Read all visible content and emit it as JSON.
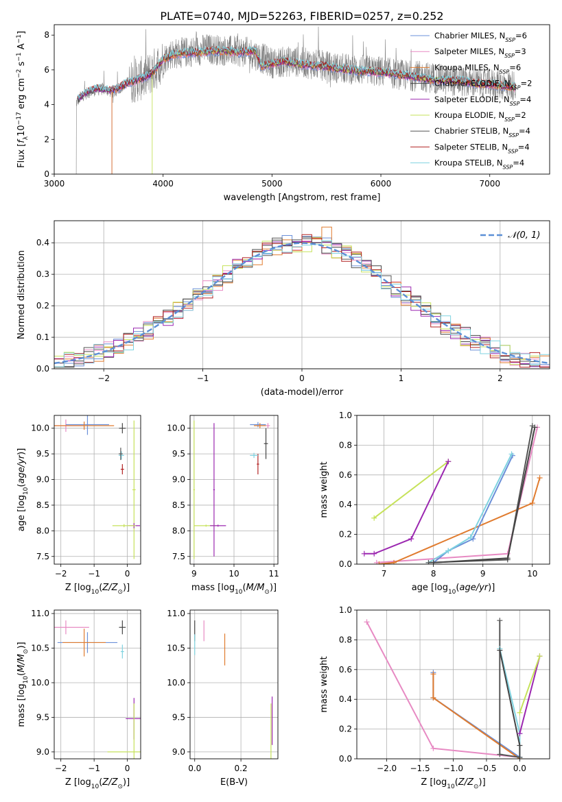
{
  "page_title": "PLATE=0740, MJD=52263, FIBERID=0257, z=0.252",
  "colors": {
    "chabrier_miles": "#6a8fd8",
    "salpeter_miles": "#e78ac3",
    "kroupa_miles": "#e07b2e",
    "chabrier_elodie": "#444444",
    "salpeter_elodie": "#9b27b0",
    "kroupa_elodie": "#c6e25a",
    "chabrier_stelib": "#555555",
    "salpeter_stelib": "#b22222",
    "kroupa_stelib": "#7fd3e0",
    "spectrum": "#808080",
    "normal": "#5b8fd6"
  },
  "legend": [
    {
      "name": "Chabrier MILES",
      "nssp": "6",
      "color_key": "chabrier_miles"
    },
    {
      "name": "Salpeter MILES",
      "nssp": "3",
      "color_key": "salpeter_miles"
    },
    {
      "name": "Kroupa MILES",
      "nssp": "6",
      "color_key": "kroupa_miles"
    },
    {
      "name": "Chabrier ELODIE",
      "nssp": "2",
      "color_key": "chabrier_elodie"
    },
    {
      "name": "Salpeter ELODIE",
      "nssp": "4",
      "color_key": "salpeter_elodie"
    },
    {
      "name": "Kroupa ELODIE",
      "nssp": "2",
      "color_key": "kroupa_elodie"
    },
    {
      "name": "Chabrier STELIB",
      "nssp": "4",
      "color_key": "chabrier_stelib"
    },
    {
      "name": "Salpeter STELIB",
      "nssp": "4",
      "color_key": "salpeter_stelib"
    },
    {
      "name": "Kroupa STELIB",
      "nssp": "4",
      "color_key": "kroupa_stelib"
    }
  ],
  "chart_data": [
    {
      "id": "spectrum",
      "type": "line",
      "xlabel": "wavelength [Angstrom, rest frame]",
      "ylabel": "Flux [f_λ 10^-17 erg cm^-2 s^-1 A^-1]",
      "xlim": [
        3000,
        7550
      ],
      "ylim": [
        0,
        8.6
      ],
      "xticks": [
        3000,
        4000,
        5000,
        6000,
        7000
      ],
      "yticks": [
        0,
        2,
        4,
        6,
        8
      ],
      "grid": false,
      "legend_position": "top-right",
      "observed_range": [
        3200,
        7240
      ],
      "observed_envelope": {
        "x": [
          3200,
          3250,
          3350,
          3450,
          3550,
          3650,
          3750,
          3850,
          3950,
          4050,
          4200,
          4400,
          4600,
          4800,
          5000,
          5200,
          5400,
          5600,
          5800,
          6000,
          6200,
          6400,
          6600,
          6800,
          7000,
          7240
        ],
        "y": [
          4.1,
          4.5,
          4.8,
          4.9,
          4.7,
          5.2,
          5.4,
          5.6,
          6.2,
          6.9,
          7.0,
          7.2,
          7.1,
          7.0,
          6.4,
          6.5,
          6.3,
          6.1,
          6.0,
          5.9,
          5.7,
          5.6,
          5.4,
          5.3,
          5.2,
          5.1
        ]
      },
      "model_mean": {
        "x": [
          3200,
          3300,
          3400,
          3500,
          3600,
          3700,
          3800,
          3900,
          4000,
          4100,
          4300,
          4500,
          4700,
          4850,
          4900,
          5100,
          5300,
          5500,
          5700,
          5900,
          6100,
          6300,
          6500,
          6700,
          6900,
          7100,
          7240
        ],
        "y": [
          4.2,
          4.7,
          4.9,
          4.8,
          5.0,
          5.3,
          5.5,
          5.8,
          6.6,
          6.9,
          7.0,
          7.1,
          7.0,
          7.1,
          6.2,
          6.5,
          6.3,
          6.2,
          6.0,
          5.9,
          5.8,
          5.6,
          5.4,
          5.4,
          5.2,
          5.1,
          5.0
        ]
      }
    },
    {
      "id": "residuals",
      "type": "line",
      "xlabel": "(data-model)/error",
      "ylabel": "Normed distribution",
      "xlim": [
        -2.5,
        2.5
      ],
      "ylim": [
        0,
        0.47
      ],
      "xticks": [
        -2,
        -1,
        0,
        1,
        2
      ],
      "yticks": [
        0.0,
        0.1,
        0.2,
        0.3,
        0.4
      ],
      "grid": true,
      "legend_position": "top-right",
      "legend_label": "𝒩(0, 1)",
      "bin_width": 0.1,
      "histogram_template": [
        0.02,
        0.03,
        0.05,
        0.08,
        0.13,
        0.17,
        0.24,
        0.3,
        0.35,
        0.38,
        0.4,
        0.39,
        0.34,
        0.29,
        0.22,
        0.15,
        0.1,
        0.07,
        0.05,
        0.03
      ],
      "notable_bins": [
        {
          "x": 0.25,
          "y": 0.45
        },
        {
          "x": -0.45,
          "y": 0.33
        }
      ]
    },
    {
      "id": "age_vs_z",
      "type": "scatter",
      "xlabel": "Z [log10(Z/Z☉)]",
      "ylabel": "age [log10(age/yr)]",
      "xlim": [
        -2.2,
        0.4
      ],
      "ylim": [
        7.35,
        10.25
      ],
      "xticks": [
        -2,
        -1,
        0
      ],
      "yticks": [
        7.5,
        8.0,
        8.5,
        9.0,
        9.5,
        10.0
      ],
      "grid": true,
      "points": [
        {
          "key": "salpeter_miles",
          "x": -1.85,
          "y": 10.05,
          "xerr": 0.55,
          "yerr": 0.12
        },
        {
          "key": "chabrier_miles",
          "x": -1.2,
          "y": 10.07,
          "xerr": 0.65,
          "yerr": 0.2
        },
        {
          "key": "kroupa_miles",
          "x": -1.3,
          "y": 10.05,
          "xerr": 0.9,
          "yerr": 0.08
        },
        {
          "key": "chabrier_elodie",
          "x": -0.15,
          "y": 10.0,
          "xerr": 0.1,
          "yerr": 0.1
        },
        {
          "key": "salpeter_stelib",
          "x": -0.15,
          "y": 9.2,
          "xerr": 0.05,
          "yerr": 0.1
        },
        {
          "key": "kroupa_stelib",
          "x": -0.18,
          "y": 9.47,
          "xerr": 0.08,
          "yerr": 0.08
        },
        {
          "key": "chabrier_stelib",
          "x": -0.2,
          "y": 9.5,
          "xerr": 0.06,
          "yerr": 0.12
        },
        {
          "key": "kroupa_elodie",
          "x": 0.2,
          "y": 8.8,
          "xerr": 0.05,
          "yerr": 1.35
        },
        {
          "key": "salpeter_elodie",
          "x": 0.2,
          "y": 8.1,
          "xerr": 0.18,
          "yerr": 0.05
        },
        {
          "key": "kroupa_elodie",
          "x": -0.1,
          "y": 8.1,
          "xerr": 0.35,
          "yerr": 0.03
        }
      ]
    },
    {
      "id": "age_vs_mass",
      "type": "scatter",
      "xlabel": "mass [log10(M/M☉)]",
      "ylabel": "",
      "xlim": [
        8.9,
        11.1
      ],
      "ylim": [
        7.35,
        10.25
      ],
      "xticks": [
        9,
        10,
        11
      ],
      "yticks": [
        7.5,
        8.0,
        8.5,
        9.0,
        9.5,
        10.0
      ],
      "grid": true,
      "points": [
        {
          "key": "kroupa_elodie",
          "x": 9.0,
          "y": 8.8,
          "xerr": 0.02,
          "yerr": 1.35
        },
        {
          "key": "salpeter_elodie",
          "x": 9.5,
          "y": 8.8,
          "xerr": 0.02,
          "yerr": 1.3
        },
        {
          "key": "kroupa_elodie",
          "x": 9.3,
          "y": 8.1,
          "xerr": 0.3,
          "yerr": 0.02
        },
        {
          "key": "salpeter_elodie",
          "x": 9.6,
          "y": 8.1,
          "xerr": 0.2,
          "yerr": 0.02
        },
        {
          "key": "chabrier_miles",
          "x": 10.6,
          "y": 10.07,
          "xerr": 0.2,
          "yerr": 0.05
        },
        {
          "key": "kroupa_miles",
          "x": 10.65,
          "y": 10.05,
          "xerr": 0.15,
          "yerr": 0.05
        },
        {
          "key": "salpeter_miles",
          "x": 10.85,
          "y": 10.05,
          "xerr": 0.05,
          "yerr": 0.05
        },
        {
          "key": "chabrier_elodie",
          "x": 10.8,
          "y": 9.7,
          "xerr": 0.05,
          "yerr": 0.3
        },
        {
          "key": "salpeter_stelib",
          "x": 10.6,
          "y": 9.3,
          "xerr": 0.03,
          "yerr": 0.2
        },
        {
          "key": "kroupa_stelib",
          "x": 10.5,
          "y": 9.47,
          "xerr": 0.1,
          "yerr": 0.05
        }
      ]
    },
    {
      "id": "weight_vs_age",
      "type": "line",
      "xlabel": "age [log10(age/yr)]",
      "ylabel": "mass weight",
      "xlim": [
        6.45,
        10.35
      ],
      "ylim": [
        0,
        1.0
      ],
      "xticks": [
        7,
        8,
        9,
        10
      ],
      "yticks": [
        0.0,
        0.2,
        0.4,
        0.6,
        0.8,
        1.0
      ],
      "grid": true,
      "series": [
        {
          "key": "kroupa_elodie",
          "x": [
            6.8,
            8.3
          ],
          "y": [
            0.31,
            0.69
          ]
        },
        {
          "key": "salpeter_elodie",
          "x": [
            6.6,
            6.8,
            7.55,
            8.3
          ],
          "y": [
            0.07,
            0.07,
            0.17,
            0.69
          ]
        },
        {
          "key": "salpeter_miles",
          "x": [
            6.85,
            9.5,
            10.1
          ],
          "y": [
            0.01,
            0.07,
            0.92
          ]
        },
        {
          "key": "kroupa_miles",
          "x": [
            6.9,
            7.2,
            10.0,
            10.15
          ],
          "y": [
            0.0,
            0.01,
            0.41,
            0.58
          ]
        },
        {
          "key": "chabrier_miles",
          "x": [
            8.0,
            8.3,
            8.8,
            9.6
          ],
          "y": [
            0.01,
            0.09,
            0.17,
            0.73
          ]
        },
        {
          "key": "kroupa_stelib",
          "x": [
            7.9,
            8.3,
            8.75,
            9.58
          ],
          "y": [
            0.01,
            0.09,
            0.18,
            0.74
          ]
        },
        {
          "key": "chabrier_stelib",
          "x": [
            7.9,
            9.5,
            10.0
          ],
          "y": [
            0.01,
            0.03,
            0.93
          ]
        },
        {
          "key": "chabrier_elodie",
          "x": [
            8.0,
            9.5,
            10.05
          ],
          "y": [
            0.01,
            0.04,
            0.92
          ]
        }
      ]
    },
    {
      "id": "mass_vs_z",
      "type": "scatter",
      "xlabel": "Z [log10(Z/Z☉)]",
      "ylabel": "mass [log10(M/M☉)]",
      "xlim": [
        -2.2,
        0.4
      ],
      "ylim": [
        8.9,
        11.05
      ],
      "xticks": [
        -2,
        -1,
        0
      ],
      "yticks": [
        9.0,
        9.5,
        10.0,
        10.5,
        11.0
      ],
      "grid": true,
      "points": [
        {
          "key": "salpeter_miles",
          "x": -1.85,
          "y": 10.8,
          "xerr": 0.7,
          "yerr": 0.1
        },
        {
          "key": "chabrier_miles",
          "x": -1.2,
          "y": 10.58,
          "xerr": 0.9,
          "yerr": 0.15
        },
        {
          "key": "kroupa_miles",
          "x": -1.3,
          "y": 10.58,
          "xerr": 0.65,
          "yerr": 0.2
        },
        {
          "key": "chabrier_elodie",
          "x": -0.15,
          "y": 10.8,
          "xerr": 0.1,
          "yerr": 0.1
        },
        {
          "key": "kroupa_stelib",
          "x": -0.15,
          "y": 10.45,
          "xerr": 0.05,
          "yerr": 0.1
        },
        {
          "key": "salpeter_elodie",
          "x": 0.2,
          "y": 9.48,
          "xerr": 0.25,
          "yerr": 0.3
        },
        {
          "key": "kroupa_elodie",
          "x": 0.2,
          "y": 9.0,
          "xerr": 0.8,
          "yerr": 0.7
        }
      ]
    },
    {
      "id": "mass_vs_ebv",
      "type": "scatter",
      "xlabel": "E(B-V)",
      "ylabel": "",
      "xlim": [
        -0.02,
        0.36
      ],
      "ylim": [
        8.9,
        11.05
      ],
      "xticks": [
        0.0,
        0.2
      ],
      "yticks": [
        9.0,
        9.5,
        10.0,
        10.5,
        11.0
      ],
      "grid": true,
      "points": [
        {
          "key": "chabrier_elodie",
          "x": 0.0,
          "y": 10.75,
          "xerr": 0.0,
          "yerr": 0.15
        },
        {
          "key": "kroupa_stelib",
          "x": 0.0,
          "y": 10.55,
          "xerr": 0.0,
          "yerr": 0.15
        },
        {
          "key": "salpeter_miles",
          "x": 0.04,
          "y": 10.75,
          "xerr": 0.0,
          "yerr": 0.15
        },
        {
          "key": "kroupa_miles",
          "x": 0.13,
          "y": 10.48,
          "xerr": 0.0,
          "yerr": 0.23
        },
        {
          "key": "salpeter_elodie",
          "x": 0.335,
          "y": 9.45,
          "xerr": 0.0,
          "yerr": 0.35
        },
        {
          "key": "kroupa_elodie",
          "x": 0.33,
          "y": 9.3,
          "xerr": 0.0,
          "yerr": 0.4
        }
      ]
    },
    {
      "id": "weight_vs_z",
      "type": "line",
      "xlabel": "Z [log10(Z/Z☉)]",
      "ylabel": "mass weight",
      "xlim": [
        -2.45,
        0.45
      ],
      "ylim": [
        0,
        1.0
      ],
      "xticks": [
        -2.0,
        -1.5,
        -1.0,
        -0.5,
        0.0
      ],
      "yticks": [
        0.0,
        0.2,
        0.4,
        0.6,
        0.8,
        1.0
      ],
      "grid": true,
      "series": [
        {
          "key": "salpeter_miles",
          "x": [
            -2.3,
            -1.3,
            0.0
          ],
          "y": [
            0.92,
            0.07,
            0.01
          ]
        },
        {
          "key": "chabrier_miles",
          "x": [
            -1.3,
            -1.3,
            0.0
          ],
          "y": [
            0.58,
            0.41,
            0.01
          ]
        },
        {
          "key": "kroupa_miles",
          "x": [
            -1.3,
            -1.3,
            0.0
          ],
          "y": [
            0.57,
            0.41,
            0.0
          ]
        },
        {
          "key": "chabrier_stelib",
          "x": [
            -0.3,
            -0.3,
            0.0
          ],
          "y": [
            0.93,
            0.03,
            0.01
          ]
        },
        {
          "key": "kroupa_stelib",
          "x": [
            -0.3,
            0.0,
            0.0
          ],
          "y": [
            0.74,
            0.17,
            0.01
          ]
        },
        {
          "key": "chabrier_elodie",
          "x": [
            -0.3,
            0.0,
            0.0
          ],
          "y": [
            0.73,
            0.09,
            0.01
          ]
        },
        {
          "key": "salpeter_elodie",
          "x": [
            0.0,
            0.3
          ],
          "y": [
            0.17,
            0.69
          ]
        },
        {
          "key": "kroupa_elodie",
          "x": [
            0.0,
            0.3
          ],
          "y": [
            0.31,
            0.69
          ]
        }
      ]
    }
  ]
}
